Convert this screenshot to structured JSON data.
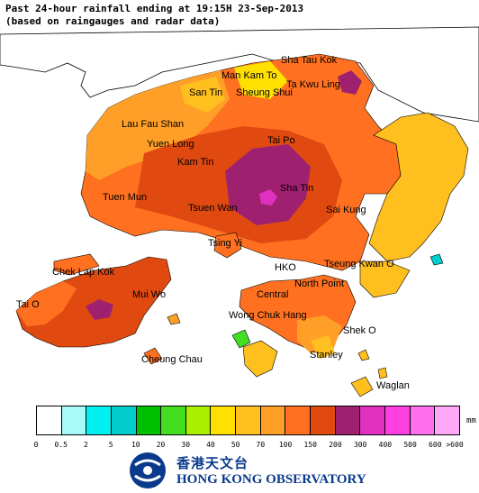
{
  "title": {
    "line1": "Past 24-hour rainfall ending at 19:15H 23-Sep-2013",
    "line2": "(based on raingauges and radar data)"
  },
  "places": [
    {
      "name": "Sha Tau Kok"
    },
    {
      "name": "Man Kam To"
    },
    {
      "name": "Ta Kwu Ling"
    },
    {
      "name": "San Tin"
    },
    {
      "name": "Sheung Shui"
    },
    {
      "name": "Lau Fau Shan"
    },
    {
      "name": "Yuen Long"
    },
    {
      "name": "Tai Po"
    },
    {
      "name": "Kam Tin"
    },
    {
      "name": "Tuen Mun"
    },
    {
      "name": "Sha Tin"
    },
    {
      "name": "Tsuen Wan"
    },
    {
      "name": "Sai Kung"
    },
    {
      "name": "Tsing Yi"
    },
    {
      "name": "Chek Lap Kok"
    },
    {
      "name": "HKO"
    },
    {
      "name": "Tseung Kwan O"
    },
    {
      "name": "North Point"
    },
    {
      "name": "Tai O"
    },
    {
      "name": "Mui Wo"
    },
    {
      "name": "Central"
    },
    {
      "name": "Wong Chuk Hang"
    },
    {
      "name": "Shek O"
    },
    {
      "name": "Cheung Chau"
    },
    {
      "name": "Stanley"
    },
    {
      "name": "Waglan"
    }
  ],
  "legend": {
    "unit": "mm",
    "colors": [
      "#ffffff",
      "#a8fafa",
      "#00f0f0",
      "#00cccc",
      "#00c000",
      "#44dd22",
      "#aaee00",
      "#ffe000",
      "#ffbf1f",
      "#ff9f28",
      "#ff7020",
      "#e04a10",
      "#a02070",
      "#e030c0",
      "#ff40e0",
      "#ff70f0",
      "#ffa8f8",
      "#ffe0fc"
    ],
    "ticks": [
      "0",
      "0.5",
      "2",
      "5",
      "10",
      "20",
      "30",
      "40",
      "50",
      "70",
      "100",
      "150",
      "200",
      "300",
      "400",
      "500",
      "600",
      ">600"
    ]
  },
  "logo": {
    "chinese": "香港天文台",
    "english": "HONG KONG OBSERVATORY"
  }
}
